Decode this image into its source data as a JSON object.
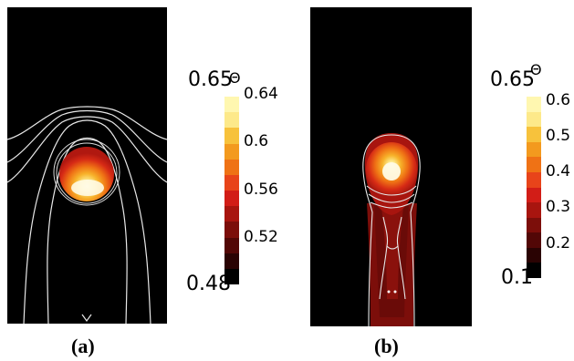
{
  "panel_a": {
    "caption": "(a)",
    "colorbar": {
      "symbol": "Θ",
      "scale_max": "0.65",
      "scale_min": "0.48",
      "ticks": [
        "0.64",
        "0.6",
        "0.56",
        "0.52"
      ],
      "colors": [
        "#fff7b0",
        "#fde98a",
        "#f7c23c",
        "#f39a1e",
        "#ef7215",
        "#e8441a",
        "#d21d17",
        "#a8150f",
        "#7c0e0a",
        "#520706",
        "#2a0303",
        "#000000"
      ]
    }
  },
  "panel_b": {
    "caption": "(b)",
    "colorbar": {
      "symbol": "Θ",
      "scale_max": "0.65",
      "scale_min": "0.1",
      "ticks": [
        "0.6",
        "0.5",
        "0.4",
        "0.3",
        "0.2"
      ],
      "colors": [
        "#fff7b0",
        "#fde98a",
        "#f7c23c",
        "#f39a1e",
        "#ef7215",
        "#e8441a",
        "#d21d17",
        "#a8150f",
        "#7c0e0a",
        "#520706",
        "#2a0303",
        "#000000"
      ]
    }
  }
}
